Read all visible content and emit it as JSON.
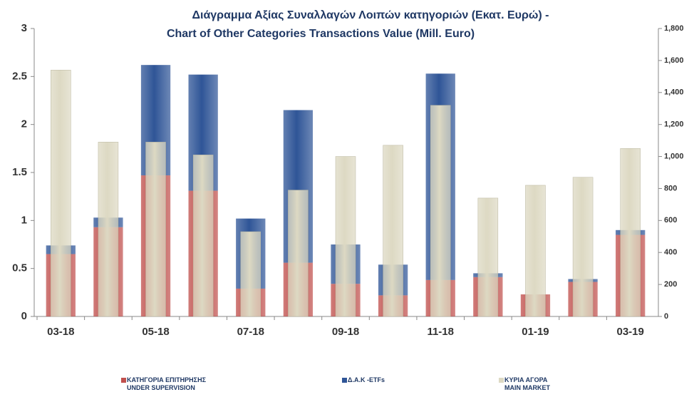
{
  "chart_data": {
    "type": "bar",
    "title": "Διάγραμμα Αξίας Συναλλαγών Λοιπών κατηγοριών (Εκατ.  Ευρώ) -",
    "subtitle": "Chart of Other Categories Transactions Value (Mill. Euro)",
    "categories": [
      "03-18",
      null,
      "05-18",
      null,
      "07-18",
      null,
      "09-18",
      null,
      "11-18",
      null,
      "01-19",
      null,
      "03-19"
    ],
    "series": [
      {
        "name": "ΚΑΤΗΓΟΡΙΑ ΕΠΙΤΗΡΗΣΗΣ\nUNDER SUPERVISION",
        "color": "#c0504d",
        "axis": "y",
        "values": [
          0.65,
          0.93,
          1.47,
          1.31,
          0.29,
          0.56,
          0.34,
          0.22,
          0.38,
          0.41,
          0.23,
          0.36,
          0.85
        ]
      },
      {
        "name": "Δ.Α.Κ -ETFs",
        "color": "#2f5597",
        "axis": "y",
        "values": [
          0.09,
          0.1,
          1.15,
          1.21,
          0.73,
          1.59,
          0.41,
          0.32,
          2.15,
          0.04,
          0,
          0.03,
          0.05
        ]
      },
      {
        "name": "ΚΥΡΙΑ ΑΓΟΡΑ\nMAIN MARKET",
        "color": "#ddd9c3",
        "axis": "y2",
        "values": [
          1540,
          1090,
          1090,
          1010,
          530,
          790,
          1000,
          1070,
          1320,
          740,
          820,
          870,
          1050
        ]
      }
    ],
    "ylim": [
      0,
      3
    ],
    "yticks": [
      0,
      0.5,
      1,
      1.5,
      2,
      2.5,
      3
    ],
    "y2lim": [
      0,
      1800
    ],
    "y2ticks": [
      0,
      200,
      400,
      600,
      800,
      {
        "value": 1000,
        "label": "1,000"
      },
      {
        "value": 1200,
        "label": "1,200"
      },
      {
        "value": 1400,
        "label": "1,400"
      },
      {
        "value": 1600,
        "label": "1,600"
      },
      {
        "value": 1800,
        "label": "1,800"
      }
    ]
  }
}
